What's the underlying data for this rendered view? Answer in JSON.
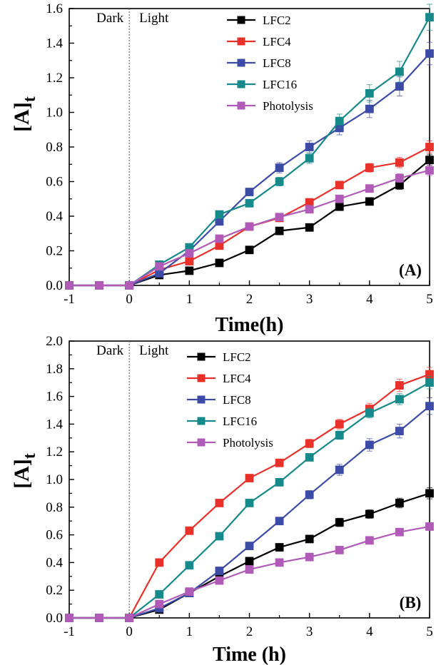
{
  "chart_data": [
    {
      "type": "line",
      "panel_label": "(A)",
      "xlabel": "Time(h)",
      "ylabel_main": "[A]",
      "ylabel_sub": "t",
      "xlim": [
        -1,
        5
      ],
      "ylim": [
        0,
        1.6
      ],
      "xticks": [
        -1,
        0,
        1,
        2,
        3,
        4,
        5
      ],
      "yticks": [
        0.0,
        0.2,
        0.4,
        0.6,
        0.8,
        1.0,
        1.2,
        1.4,
        1.6
      ],
      "region_labels": {
        "dark": "Dark",
        "light": "Light"
      },
      "legend_position": "top-right",
      "x": [
        -1,
        -0.5,
        0,
        0.5,
        1,
        1.5,
        2,
        2.5,
        3,
        3.5,
        4,
        4.5,
        5
      ],
      "series": [
        {
          "name": "LFC2",
          "color": "#000000",
          "values": [
            0,
            0,
            0,
            0.06,
            0.085,
            0.13,
            0.205,
            0.315,
            0.335,
            0.455,
            0.485,
            0.58,
            0.725
          ],
          "err": [
            0,
            0,
            0,
            0.01,
            0.01,
            0.01,
            0.01,
            0.015,
            0.015,
            0.02,
            0.02,
            0.025,
            0.03
          ]
        },
        {
          "name": "LFC4",
          "color": "#e8312a",
          "values": [
            0,
            0,
            0,
            0.09,
            0.14,
            0.23,
            0.34,
            0.39,
            0.48,
            0.58,
            0.68,
            0.71,
            0.8
          ],
          "err": [
            0,
            0,
            0,
            0.01,
            0.01,
            0.01,
            0.015,
            0.015,
            0.02,
            0.02,
            0.025,
            0.03,
            0.035
          ]
        },
        {
          "name": "LFC8",
          "color": "#3c4ba6",
          "values": [
            0,
            0,
            0,
            0.07,
            0.2,
            0.37,
            0.54,
            0.68,
            0.8,
            0.91,
            1.02,
            1.15,
            1.34
          ],
          "err": [
            0,
            0,
            0,
            0.01,
            0.015,
            0.015,
            0.02,
            0.03,
            0.035,
            0.04,
            0.05,
            0.055,
            0.065
          ]
        },
        {
          "name": "LFC16",
          "color": "#168a8a",
          "values": [
            0,
            0,
            0,
            0.12,
            0.22,
            0.41,
            0.475,
            0.6,
            0.735,
            0.95,
            1.11,
            1.235,
            1.55
          ],
          "err": [
            0,
            0,
            0,
            0.01,
            0.015,
            0.015,
            0.02,
            0.025,
            0.03,
            0.04,
            0.05,
            0.06,
            0.075
          ]
        },
        {
          "name": "Photolysis",
          "color": "#b05bb8",
          "values": [
            0,
            0,
            0,
            0.11,
            0.185,
            0.27,
            0.34,
            0.395,
            0.44,
            0.5,
            0.56,
            0.62,
            0.665
          ],
          "err": [
            0,
            0,
            0,
            0.01,
            0.01,
            0.01,
            0.01,
            0.015,
            0.015,
            0.02,
            0.02,
            0.025,
            0.03
          ]
        }
      ]
    },
    {
      "type": "line",
      "panel_label": "(B)",
      "xlabel": "Time (h)",
      "ylabel_main": "[A]",
      "ylabel_sub": "t",
      "xlim": [
        -1,
        5
      ],
      "ylim": [
        0,
        2.0
      ],
      "xticks": [
        -1,
        0,
        1,
        2,
        3,
        4,
        5
      ],
      "yticks": [
        0.0,
        0.2,
        0.4,
        0.6,
        0.8,
        1.0,
        1.2,
        1.4,
        1.6,
        1.8,
        2.0
      ],
      "region_labels": {
        "dark": "Dark",
        "light": "Light"
      },
      "legend_position": "top-center",
      "x": [
        -1,
        -0.5,
        0,
        0.5,
        1,
        1.5,
        2,
        2.5,
        3,
        3.5,
        4,
        4.5,
        5
      ],
      "series": [
        {
          "name": "LFC2",
          "color": "#000000",
          "values": [
            0,
            0,
            0,
            0.06,
            0.18,
            0.3,
            0.41,
            0.51,
            0.57,
            0.69,
            0.75,
            0.83,
            0.9
          ],
          "err": [
            0,
            0,
            0,
            0.01,
            0.01,
            0.015,
            0.02,
            0.02,
            0.02,
            0.03,
            0.03,
            0.035,
            0.04
          ]
        },
        {
          "name": "LFC4",
          "color": "#e8312a",
          "values": [
            0,
            0,
            0,
            0.4,
            0.63,
            0.83,
            1.01,
            1.12,
            1.26,
            1.4,
            1.51,
            1.68,
            1.76
          ],
          "err": [
            0,
            0,
            0,
            0.015,
            0.015,
            0.02,
            0.02,
            0.025,
            0.03,
            0.035,
            0.04,
            0.045,
            0.05
          ]
        },
        {
          "name": "LFC8",
          "color": "#3c4ba6",
          "values": [
            0,
            0,
            0,
            0.07,
            0.18,
            0.34,
            0.52,
            0.7,
            0.89,
            1.07,
            1.25,
            1.35,
            1.53
          ],
          "err": [
            0,
            0,
            0,
            0.01,
            0.01,
            0.015,
            0.02,
            0.02,
            0.03,
            0.04,
            0.045,
            0.05,
            0.06
          ]
        },
        {
          "name": "LFC16",
          "color": "#168a8a",
          "values": [
            0,
            0,
            0,
            0.17,
            0.38,
            0.59,
            0.83,
            0.98,
            1.16,
            1.32,
            1.48,
            1.58,
            1.7
          ],
          "err": [
            0,
            0,
            0,
            0.01,
            0.015,
            0.015,
            0.02,
            0.02,
            0.025,
            0.03,
            0.035,
            0.04,
            0.045
          ]
        },
        {
          "name": "Photolysis",
          "color": "#b05bb8",
          "values": [
            0,
            0,
            0,
            0.1,
            0.19,
            0.27,
            0.35,
            0.4,
            0.44,
            0.49,
            0.56,
            0.62,
            0.66
          ],
          "err": [
            0,
            0,
            0,
            0.01,
            0.01,
            0.01,
            0.01,
            0.01,
            0.015,
            0.015,
            0.02,
            0.02,
            0.025
          ]
        }
      ]
    }
  ]
}
